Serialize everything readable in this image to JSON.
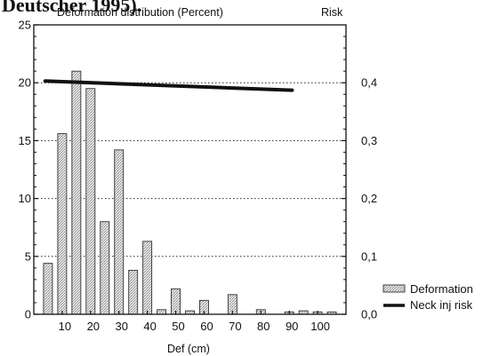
{
  "header_fragment": "Deutscher 1995).",
  "chart_data": {
    "type": "bar",
    "title": "Deformation distribution (Percent)",
    "right_axis_title": "Risk",
    "xlabel": "Def (cm)",
    "ylim": [
      0,
      25
    ],
    "y_ticks": [
      "0",
      "5",
      "10",
      "15",
      "20",
      "25"
    ],
    "y2lim": [
      0.0,
      0.5
    ],
    "y2_ticks": [
      "0,0",
      "0,1",
      "0,2",
      "0,3",
      "0,4"
    ],
    "x_ticks": [
      "10",
      "20",
      "30",
      "40",
      "50",
      "60",
      "70",
      "80",
      "90",
      "100"
    ],
    "grid": "dotted horizontal",
    "legend_position": "bottom-right",
    "series": [
      {
        "name": "Deformation",
        "kind": "bar",
        "color": "#d9d9d9",
        "x": [
          5,
          10,
          15,
          20,
          25,
          30,
          35,
          40,
          45,
          50,
          55,
          60,
          65,
          70,
          75,
          80,
          85,
          90,
          95,
          100,
          105
        ],
        "values": [
          4.4,
          15.6,
          21.0,
          19.5,
          8.0,
          14.2,
          3.8,
          6.3,
          0.4,
          2.2,
          0.3,
          1.2,
          0.0,
          1.7,
          0.0,
          0.4,
          0.0,
          0.2,
          0.3,
          0.2,
          0.2
        ]
      },
      {
        "name": "Neck inj risk",
        "kind": "line",
        "axis": "right",
        "color": "#111111",
        "x": [
          4,
          91
        ],
        "values": [
          0.403,
          0.387
        ]
      }
    ]
  }
}
